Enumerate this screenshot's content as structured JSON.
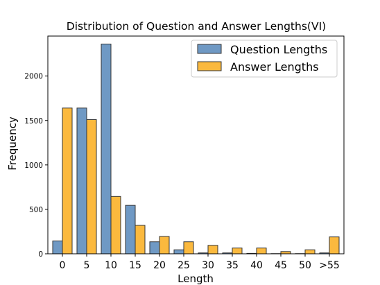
{
  "chart_data": {
    "type": "bar",
    "title": "Distribution of Question and Answer Lengths(VI)",
    "xlabel": "Length",
    "ylabel": "Frequency",
    "categories": [
      "0",
      "5",
      "10",
      "15",
      "20",
      "25",
      "30",
      "35",
      "40",
      "45",
      "50",
      ">55"
    ],
    "ylim": [
      0,
      2450
    ],
    "yticks": [
      0,
      500,
      1000,
      1500,
      2000
    ],
    "ytick_labels": [
      "0",
      "500",
      "1000",
      "1500",
      "2000"
    ],
    "legend_position": "top-right",
    "grid": false,
    "series": [
      {
        "name": "Question Lengths",
        "color": "#6f99c4",
        "values": [
          145,
          1640,
          2360,
          545,
          135,
          45,
          10,
          10,
          5,
          2,
          2,
          10
        ]
      },
      {
        "name": "Answer Lengths",
        "color": "#fbb93e",
        "values": [
          1640,
          1510,
          645,
          320,
          195,
          135,
          95,
          65,
          65,
          25,
          45,
          190
        ]
      }
    ]
  }
}
